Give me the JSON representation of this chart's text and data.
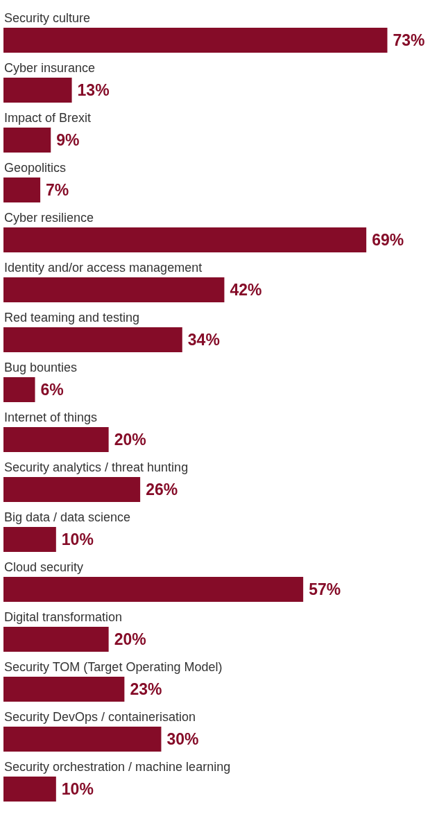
{
  "chart_data": {
    "type": "bar",
    "orientation": "horizontal",
    "legend": false,
    "categories": [
      "Security culture",
      "Cyber insurance",
      "Impact of Brexit",
      "Geopolitics",
      "Cyber resilience",
      "Identity and/or access management",
      "Red teaming and testing",
      "Bug bounties",
      "Internet of things",
      "Security analytics / threat hunting",
      "Big data / data science",
      "Cloud security",
      "Digital transformation",
      "Security TOM (Target Operating Model)",
      "Security DevOps / containerisation",
      "Security orchestration / machine learning"
    ],
    "values": [
      73,
      13,
      9,
      7,
      69,
      42,
      34,
      6,
      20,
      26,
      10,
      57,
      20,
      23,
      30,
      10
    ],
    "value_labels": [
      "73%",
      "13%",
      "9%",
      "7%",
      "69%",
      "42%",
      "34%",
      "6%",
      "20%",
      "26%",
      "10%",
      "57%",
      "20%",
      "23%",
      "30%",
      "10%"
    ],
    "color": "#850c28"
  }
}
